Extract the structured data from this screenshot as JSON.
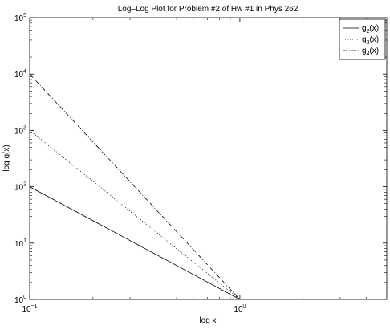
{
  "chart_data": {
    "type": "line",
    "title": "Log–Log Plot for Problem #2 of Hw #1 in Phys 262",
    "xlabel": "log x",
    "ylabel": "log g(x)",
    "xscale": "log",
    "yscale": "log",
    "xlim": [
      0.1,
      5
    ],
    "ylim": [
      1,
      100000
    ],
    "x_ticks": [
      {
        "value": 0.1,
        "base": "10",
        "exp": "−1"
      },
      {
        "value": 1,
        "base": "10",
        "exp": "0"
      }
    ],
    "y_ticks": [
      {
        "value": 1,
        "base": "10",
        "exp": "0"
      },
      {
        "value": 10,
        "base": "10",
        "exp": "1"
      },
      {
        "value": 100,
        "base": "10",
        "exp": "2"
      },
      {
        "value": 1000,
        "base": "10",
        "exp": "3"
      },
      {
        "value": 10000,
        "base": "10",
        "exp": "4"
      },
      {
        "value": 100000,
        "base": "10",
        "exp": "5"
      }
    ],
    "grid": false,
    "legend_position": "top-right",
    "series": [
      {
        "name": "g2(x)",
        "label_base": "g",
        "label_sub": "2",
        "label_tail": "(x)",
        "dash": "solid",
        "x": [
          0.1,
          1
        ],
        "y": [
          100,
          1
        ]
      },
      {
        "name": "g3(x)",
        "label_base": "g",
        "label_sub": "3",
        "label_tail": "(x)",
        "dash": "dotted",
        "x": [
          0.1,
          1
        ],
        "y": [
          1000,
          1
        ]
      },
      {
        "name": "g4(x)",
        "label_base": "g",
        "label_sub": "4",
        "label_tail": "(x)",
        "dash": "dashdot",
        "x": [
          0.1,
          1
        ],
        "y": [
          10000,
          1
        ]
      }
    ]
  }
}
